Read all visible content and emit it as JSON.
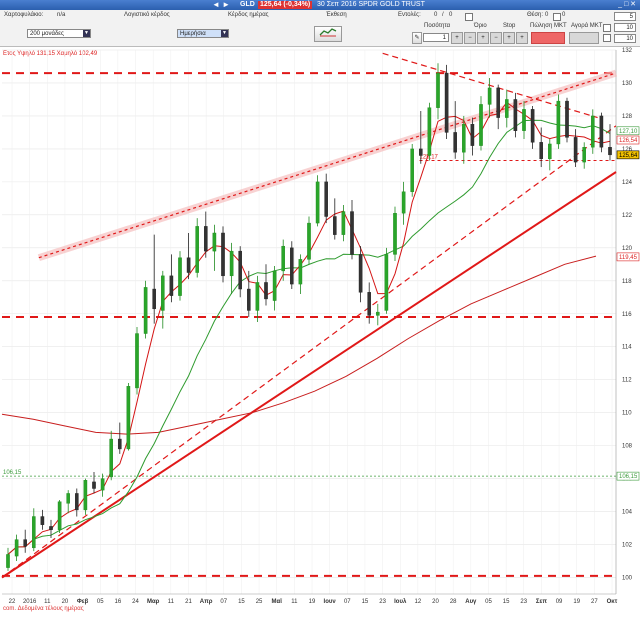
{
  "window": {
    "arrows": "◄ ►",
    "symbol": "GLD",
    "price_badge": "125,64 (-0,34%)",
    "description": "30 Σεπ 2016 SPDR GOLD TRUST",
    "controls": "_ □ ✕"
  },
  "toolbar": {
    "portfolio_label": "Χαρτοφυλάκιο:",
    "portfolio_value": "n/a",
    "logical_profit_label": "Λογιστικό κέρδος",
    "daily_profit_label": "Κέρδος ημέρας",
    "exposure_label": "Έκθεση",
    "orders_label": "Εντολές:",
    "orders_value": "0",
    "orders_sep": "/",
    "orders_value2": "0",
    "positions_label": "Θέση:",
    "positions_value": "0",
    "positions_value2": "0",
    "period_select": "200 μονάδες",
    "interval_select": "Ημερήσια",
    "buttons": {
      "quantity": "Ποσότητα",
      "limit": "Όριο",
      "stop": "Stop",
      "sell_market": "Πώληση ΜΚΤ",
      "buy_market": "Αγορά ΜΚΤ"
    },
    "quantity_value": "1",
    "right_values": [
      "5",
      "10",
      "10"
    ]
  },
  "chart_data": {
    "type": "candlestick",
    "title": "Ετος Υψηλό 131,15 Χαμηλό 102,49",
    "ylim": [
      99,
      132
    ],
    "yticks": [
      100,
      102,
      104,
      106,
      108,
      110,
      112,
      114,
      116,
      118,
      120,
      122,
      124,
      126,
      128,
      130,
      132
    ],
    "xticks": [
      "22",
      "2016",
      "11",
      "20",
      "Φεβ",
      "05",
      "16",
      "24",
      "Μαρ",
      "11",
      "21",
      "Απρ",
      "07",
      "15",
      "25",
      "Μαϊ",
      "11",
      "19",
      "Ιουν",
      "07",
      "15",
      "23",
      "Ιουλ",
      "12",
      "20",
      "28",
      "Αυγ",
      "05",
      "15",
      "23",
      "Σεπ",
      "09",
      "19",
      "27",
      "Οκτ"
    ],
    "axis_markers": [
      {
        "label": "127,10",
        "color": "#3c9b3c"
      },
      {
        "label": "126,54",
        "color": "#d22"
      },
      {
        "label": "125,64",
        "color": "#000"
      },
      {
        "label": "119,45",
        "color": "#d22"
      },
      {
        "label": "106,15",
        "color": "#3c9b3c"
      }
    ],
    "annotations": {
      "support_label": "125,17",
      "ref_line_label": "106,15"
    },
    "footer": "com. Δεδομένα τέλους ημέρας",
    "horizontal_lines": [
      130.6,
      115.8,
      100.1,
      125.3
    ],
    "reference_line": 106.15,
    "trend_lines": [
      {
        "style": "solid",
        "from": [
          0,
          100
        ],
        "to": [
          1,
          124.6
        ]
      },
      {
        "style": "dashed",
        "from": [
          0,
          100
        ],
        "to": [
          1,
          127.4
        ]
      },
      {
        "style": "dashed-glow",
        "from": [
          0.06,
          119.4
        ],
        "to": [
          1,
          130.6
        ]
      },
      {
        "style": "dashed",
        "from": [
          0.62,
          131.8
        ],
        "to": [
          0.97,
          127.9
        ]
      }
    ],
    "ma_long": [
      109.9,
      109.6,
      109.2,
      108.8,
      108.7,
      108.8,
      109.2,
      109.6,
      110.0,
      110.6,
      111.3,
      112.2,
      113.3,
      114.5,
      115.6,
      116.6,
      117.4,
      118.2,
      119.0,
      119.5
    ],
    "ma_mid_anchor": [
      [
        0.0,
        110.4
      ],
      [
        0.52,
        122.5
      ],
      [
        0.7,
        126.5
      ],
      [
        0.8,
        127.0
      ],
      [
        0.94,
        126.9
      ]
    ],
    "candles": [
      [
        0,
        100.6,
        101.8,
        100.4,
        101.4
      ],
      [
        1,
        101.3,
        102.6,
        101.0,
        102.3
      ],
      [
        2,
        102.3,
        102.9,
        101.5,
        101.9
      ],
      [
        3,
        101.8,
        104.2,
        101.6,
        103.7
      ],
      [
        4,
        103.7,
        104.1,
        102.9,
        103.2
      ],
      [
        5,
        103.1,
        103.5,
        102.4,
        102.9
      ],
      [
        6,
        102.9,
        104.7,
        102.7,
        104.6
      ],
      [
        7,
        104.5,
        105.3,
        103.9,
        105.1
      ],
      [
        8,
        105.1,
        105.4,
        103.7,
        104.1
      ],
      [
        9,
        104.1,
        106.0,
        103.8,
        105.9
      ],
      [
        10,
        105.8,
        106.4,
        105.1,
        105.4
      ],
      [
        11,
        105.3,
        106.3,
        104.9,
        106.0
      ],
      [
        12,
        106.1,
        108.9,
        105.9,
        108.4
      ],
      [
        13,
        108.4,
        109.4,
        107.5,
        107.8
      ],
      [
        14,
        107.8,
        111.8,
        107.7,
        111.6
      ],
      [
        15,
        111.5,
        115.2,
        111.1,
        114.8
      ],
      [
        16,
        114.8,
        118.0,
        114.5,
        117.6
      ],
      [
        17,
        117.5,
        120.8,
        115.4,
        116.3
      ],
      [
        18,
        116.2,
        118.6,
        115.1,
        118.3
      ],
      [
        19,
        118.3,
        119.6,
        116.7,
        117.1
      ],
      [
        20,
        117.1,
        119.8,
        116.8,
        119.4
      ],
      [
        21,
        119.4,
        120.9,
        118.1,
        118.5
      ],
      [
        22,
        118.5,
        121.8,
        118.2,
        121.3
      ],
      [
        23,
        121.3,
        122.2,
        119.4,
        119.8
      ],
      [
        24,
        119.8,
        121.4,
        118.6,
        120.9
      ],
      [
        25,
        120.9,
        121.3,
        117.9,
        118.3
      ],
      [
        26,
        118.3,
        120.3,
        117.2,
        119.8
      ],
      [
        27,
        119.8,
        120.1,
        117.0,
        117.5
      ],
      [
        28,
        117.5,
        118.6,
        115.8,
        116.2
      ],
      [
        29,
        116.2,
        118.3,
        115.5,
        117.9
      ],
      [
        30,
        117.9,
        119.0,
        116.5,
        116.9
      ],
      [
        31,
        116.8,
        118.9,
        116.2,
        118.6
      ],
      [
        32,
        118.6,
        120.5,
        118.0,
        120.1
      ],
      [
        33,
        120.0,
        120.4,
        117.5,
        117.8
      ],
      [
        34,
        117.8,
        119.6,
        117.2,
        119.3
      ],
      [
        35,
        119.3,
        121.9,
        119.0,
        121.5
      ],
      [
        36,
        121.5,
        124.4,
        121.3,
        124.0
      ],
      [
        37,
        124.0,
        124.5,
        121.5,
        121.9
      ],
      [
        38,
        121.9,
        123.0,
        120.5,
        120.8
      ],
      [
        39,
        120.8,
        122.6,
        120.4,
        122.2
      ],
      [
        40,
        122.2,
        122.9,
        119.3,
        119.6
      ],
      [
        41,
        119.6,
        120.1,
        116.7,
        117.3
      ],
      [
        42,
        117.3,
        117.9,
        115.4,
        115.9
      ],
      [
        43,
        115.9,
        116.6,
        115.3,
        116.1
      ],
      [
        44,
        116.2,
        120.0,
        116.0,
        119.6
      ],
      [
        45,
        119.6,
        122.5,
        119.2,
        122.1
      ],
      [
        46,
        122.1,
        124.0,
        121.4,
        123.4
      ],
      [
        47,
        123.4,
        126.3,
        123.1,
        126.0
      ],
      [
        48,
        126.0,
        128.3,
        125.1,
        125.6
      ],
      [
        49,
        125.6,
        128.8,
        125.3,
        128.5
      ],
      [
        50,
        128.5,
        131.2,
        127.8,
        130.6
      ],
      [
        51,
        130.6,
        131.1,
        126.6,
        127.0
      ],
      [
        52,
        127.0,
        128.9,
        125.4,
        125.8
      ],
      [
        53,
        125.8,
        128.0,
        125.1,
        127.5
      ],
      [
        54,
        127.5,
        127.9,
        125.6,
        126.2
      ],
      [
        55,
        126.2,
        129.2,
        125.9,
        128.7
      ],
      [
        56,
        128.7,
        130.3,
        127.9,
        129.7
      ],
      [
        57,
        129.7,
        129.9,
        127.2,
        127.9
      ],
      [
        58,
        127.9,
        129.6,
        127.3,
        129.0
      ],
      [
        59,
        129.0,
        129.4,
        126.7,
        127.1
      ],
      [
        60,
        127.1,
        128.9,
        126.6,
        128.4
      ],
      [
        61,
        128.4,
        128.6,
        126.0,
        126.4
      ],
      [
        62,
        126.4,
        127.3,
        124.9,
        125.4
      ],
      [
        63,
        125.4,
        126.6,
        124.7,
        126.3
      ],
      [
        64,
        126.3,
        129.3,
        126.0,
        128.9
      ],
      [
        65,
        128.9,
        129.1,
        126.4,
        126.7
      ],
      [
        66,
        126.7,
        127.2,
        124.9,
        125.2
      ],
      [
        67,
        125.2,
        126.4,
        124.8,
        126.1
      ],
      [
        68,
        126.1,
        128.4,
        125.7,
        128.0
      ],
      [
        69,
        128.0,
        128.2,
        125.8,
        126.1
      ],
      [
        70,
        126.1,
        127.5,
        125.3,
        125.64
      ]
    ]
  }
}
